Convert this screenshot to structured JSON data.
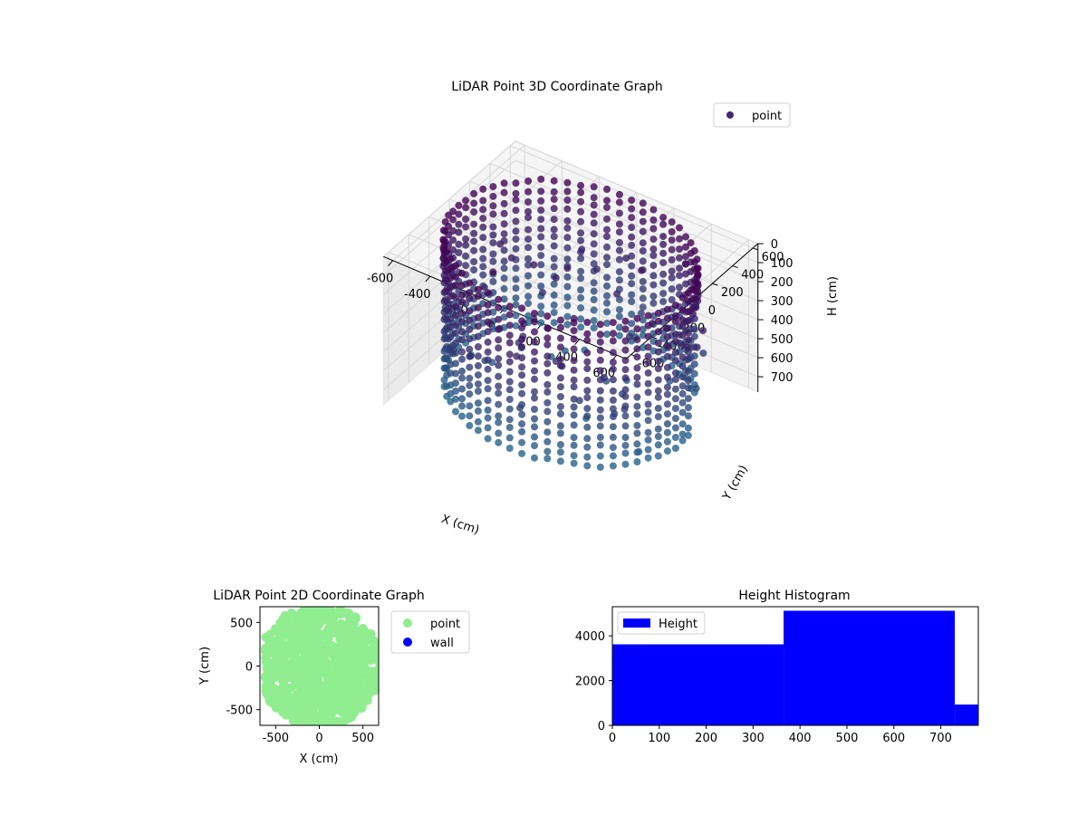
{
  "chart_data": [
    {
      "type": "scatter",
      "projection": "3d",
      "title": "LiDAR Point 3D Coordinate Graph",
      "xlabel": "X (cm)",
      "ylabel": "Y (cm)",
      "zlabel": "H (cm)",
      "xlim": [
        -650,
        650
      ],
      "ylim": [
        -650,
        650
      ],
      "zlim": [
        780,
        0
      ],
      "xticks": [
        -600,
        -400,
        -200,
        0,
        200,
        400,
        600
      ],
      "yticks": [
        -600,
        -400,
        -200,
        0,
        200,
        400,
        600
      ],
      "zticks": [
        0,
        100,
        200,
        300,
        400,
        500,
        600,
        700
      ],
      "zaxis_inverted": true,
      "grid": true,
      "legend": {
        "entries": [
          "point"
        ],
        "placement": "upper-right"
      },
      "colormap": "viridis",
      "series": [
        {
          "name": "point",
          "shape": "ring wall of scanned points around the sensor",
          "ring_radius_cm": 600,
          "height_range_cm": [
            0,
            780
          ],
          "scattered_outliers": true
        }
      ]
    },
    {
      "type": "scatter",
      "title": "LiDAR Point 2D Coordinate Graph",
      "xlabel": "X (cm)",
      "ylabel": "Y (cm)",
      "xlim": [
        -680,
        680
      ],
      "ylim": [
        -680,
        680
      ],
      "xticks": [
        -500,
        0,
        500
      ],
      "yticks": [
        -500,
        0,
        500
      ],
      "legend": {
        "entries": [
          "point",
          "wall"
        ],
        "placement": "outside-right"
      },
      "series": [
        {
          "name": "point",
          "color": "#90ee90"
        },
        {
          "name": "wall",
          "color": "#0000ff"
        }
      ]
    },
    {
      "type": "bar",
      "subtype": "histogram",
      "title": "Height Histogram",
      "xlim": [
        0,
        780
      ],
      "ylim": [
        0,
        5300
      ],
      "xticks": [
        0,
        100,
        200,
        300,
        400,
        500,
        600,
        700
      ],
      "yticks": [
        0,
        2000,
        4000
      ],
      "legend": {
        "entries": [
          "Height"
        ],
        "placement": "upper-left"
      },
      "series": [
        {
          "name": "Height",
          "color": "#0000ff",
          "bins": [
            {
              "start": 0,
              "end": 365,
              "count": 3620
            },
            {
              "start": 365,
              "end": 730,
              "count": 5120
            },
            {
              "start": 730,
              "end": 780,
              "count": 930
            }
          ]
        }
      ]
    }
  ]
}
